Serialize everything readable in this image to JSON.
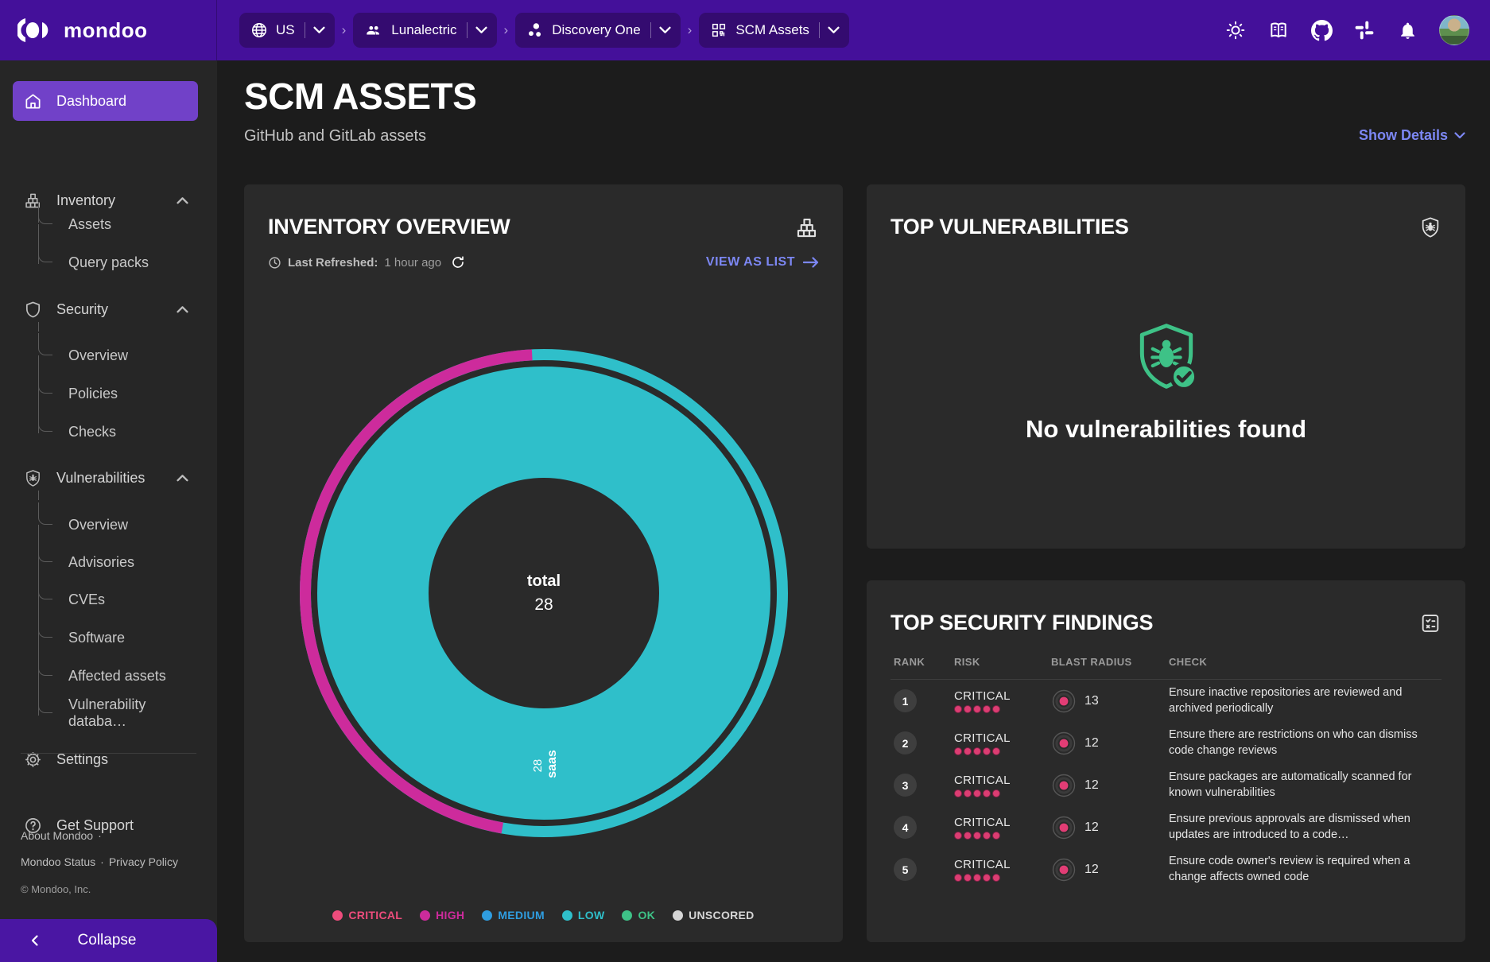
{
  "topbar": {
    "brand": "mondoo",
    "breadcrumb_separator": "›",
    "breadcrumbs": [
      {
        "label": "US",
        "icon": "globe"
      },
      {
        "label": "Lunalectric",
        "icon": "org"
      },
      {
        "label": "Discovery One",
        "icon": "space"
      },
      {
        "label": "SCM Assets",
        "icon": "qr"
      }
    ],
    "action_icons": [
      "theme",
      "docs",
      "github",
      "slack",
      "bell"
    ]
  },
  "sidebar": {
    "items": [
      {
        "label": "Dashboard",
        "icon": "home",
        "type": "top",
        "active": true
      },
      {
        "label": "Inventory",
        "icon": "boxes",
        "type": "section",
        "expanded": true
      },
      {
        "label": "Assets",
        "type": "sub"
      },
      {
        "label": "Query packs",
        "type": "sub",
        "last": true
      },
      {
        "label": "Security",
        "icon": "shield",
        "type": "section",
        "expanded": true
      },
      {
        "label": "Overview",
        "type": "sub"
      },
      {
        "label": "Policies",
        "type": "sub"
      },
      {
        "label": "Checks",
        "type": "sub",
        "last": true
      },
      {
        "label": "Vulnerabilities",
        "icon": "shieldbug",
        "type": "section",
        "expanded": true
      },
      {
        "label": "Overview",
        "type": "sub"
      },
      {
        "label": "Advisories",
        "type": "sub"
      },
      {
        "label": "CVEs",
        "type": "sub"
      },
      {
        "label": "Software",
        "type": "sub"
      },
      {
        "label": "Affected assets",
        "type": "sub"
      },
      {
        "label": "Vulnerability databa…",
        "type": "sub",
        "last": true
      },
      {
        "label": "Settings",
        "icon": "gear",
        "type": "top"
      },
      {
        "label": "Get Support",
        "icon": "help",
        "type": "top"
      }
    ],
    "footer_links": [
      "About Mondoo",
      "Mondoo Status",
      "Privacy Policy"
    ],
    "footer_separator": "·",
    "copyright": "© Mondoo, Inc.",
    "collapse_label": "Collapse"
  },
  "page": {
    "title": "SCM ASSETS",
    "subtitle": "GitHub and GitLab assets",
    "show_details": "Show Details"
  },
  "inventory_overview": {
    "title": "INVENTORY OVERVIEW",
    "last_refreshed_label": "Last Refreshed:",
    "last_refreshed_value": "1 hour ago",
    "view_as_list": "VIEW AS LIST",
    "chart_data": {
      "type": "donut",
      "center_label": "total",
      "center_value": "28",
      "rings": [
        {
          "name": "asset-types",
          "segments": [
            {
              "label": "saas",
              "value": "28",
              "color": "#2fbfca"
            }
          ]
        },
        {
          "name": "score-distribution",
          "segments": [
            {
              "label": "high",
              "value": 13,
              "color": "#cd2b9c"
            },
            {
              "label": "low",
              "value": 15,
              "color": "#2fbfca"
            }
          ],
          "start_angle_deg": 190
        }
      ]
    },
    "legend": [
      {
        "label": "CRITICAL",
        "color": "#ee4c7c"
      },
      {
        "label": "HIGH",
        "color": "#cd2b9c"
      },
      {
        "label": "MEDIUM",
        "color": "#2f9de0"
      },
      {
        "label": "LOW",
        "color": "#2fbfca"
      },
      {
        "label": "OK",
        "color": "#3ec287"
      },
      {
        "label": "UNSCORED",
        "color": "#d6d6d6"
      }
    ]
  },
  "top_vulnerabilities": {
    "title": "TOP VULNERABILITIES",
    "empty_message": "No vulnerabilities found",
    "accent_color": "#3ec287"
  },
  "top_security_findings": {
    "title": "TOP SECURITY FINDINGS",
    "columns": [
      "RANK",
      "RISK",
      "BLAST RADIUS",
      "CHECK"
    ],
    "rows": [
      {
        "rank": "1",
        "risk": "CRITICAL",
        "risk_dots": 5,
        "blast_radius": "13",
        "check": "Ensure inactive repositories are reviewed and archived periodically"
      },
      {
        "rank": "2",
        "risk": "CRITICAL",
        "risk_dots": 5,
        "blast_radius": "12",
        "check": "Ensure there are restrictions on who can dismiss code change reviews"
      },
      {
        "rank": "3",
        "risk": "CRITICAL",
        "risk_dots": 5,
        "blast_radius": "12",
        "check": "Ensure packages are automatically scanned for known vulnerabilities"
      },
      {
        "rank": "4",
        "risk": "CRITICAL",
        "risk_dots": 5,
        "blast_radius": "12",
        "check": "Ensure previous approvals are dismissed when updates are introduced to a code…"
      },
      {
        "rank": "5",
        "risk": "CRITICAL",
        "risk_dots": 5,
        "blast_radius": "12",
        "check": "Ensure code owner's review is required when a change affects owned code"
      }
    ]
  }
}
